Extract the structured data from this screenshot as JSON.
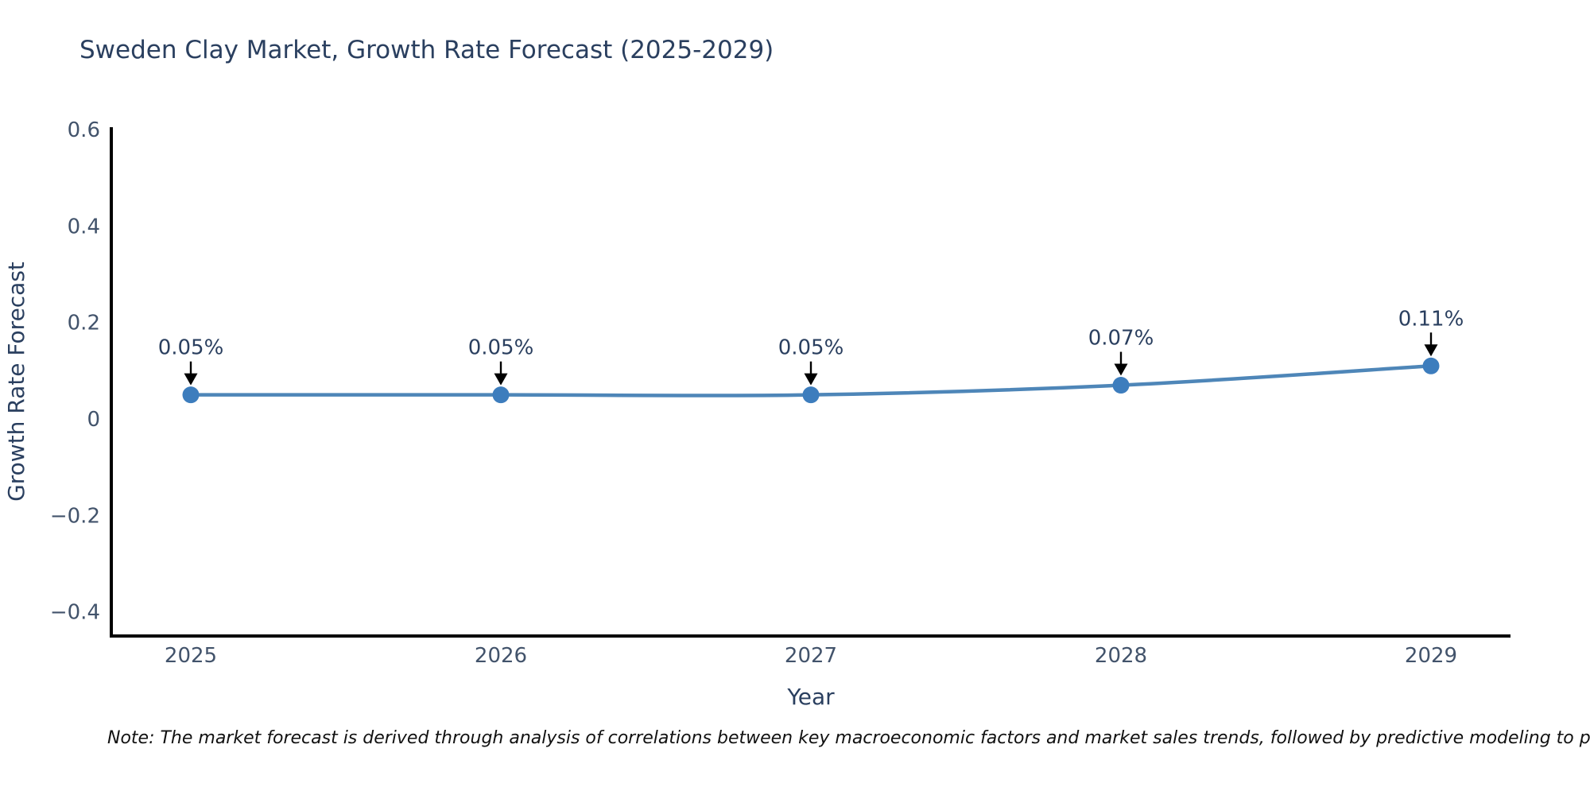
{
  "note": "Note: The market forecast is derived through analysis of correlations between key macroeconomic factors and market sales trends, followed by predictive modeling to project future sales...",
  "chart_data": {
    "type": "line",
    "title": "Sweden Clay Market, Growth Rate Forecast (2025-2029)",
    "xlabel": "Year",
    "ylabel": "Growth Rate Forecast",
    "x": [
      2025,
      2026,
      2027,
      2028,
      2029
    ],
    "y": [
      0.05,
      0.05,
      0.05,
      0.07,
      0.11
    ],
    "point_labels": [
      "0.05%",
      "0.05%",
      "0.05%",
      "0.07%",
      "0.11%"
    ],
    "xtick_labels": [
      "2025",
      "2026",
      "2027",
      "2028",
      "2029"
    ],
    "ytick_values": [
      0.6,
      0.4,
      0.2,
      0,
      -0.2,
      -0.4
    ],
    "ytick_labels": [
      "0.6",
      "0.4",
      "0.2",
      "0",
      "−0.2",
      "−0.4"
    ],
    "ylim": [
      -0.45,
      0.605
    ],
    "grid": false,
    "legend": "none",
    "colors": {
      "line": "#4e86b8",
      "marker": "#3d7dbd",
      "axis_line": "#000000",
      "annotation_arrow": "#000000",
      "title_text": "#2a3f5f",
      "tick_text": "#42536b",
      "note_text": "#111111",
      "background": "#ffffff"
    }
  }
}
